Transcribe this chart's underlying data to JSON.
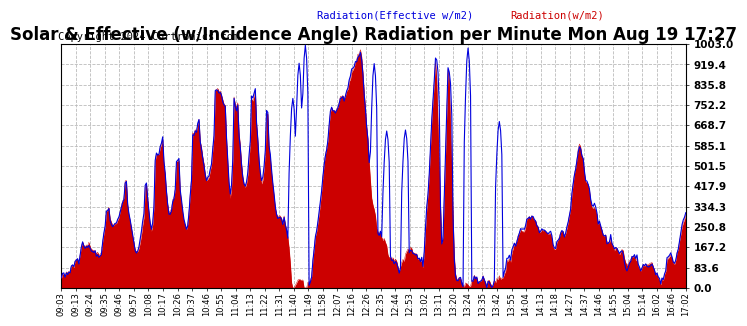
{
  "title": "Solar & Effective (w/Incidence Angle) Radiation per Minute Mon Aug 19 17:27",
  "copyright": "Copyright 2024 Curtronics.com",
  "legend_blue": "Radiation(Effective w/m2)",
  "legend_red": "Radiation(w/m2)",
  "ymin": 0.0,
  "ymax": 1003.0,
  "yticks": [
    0.0,
    83.6,
    167.2,
    250.8,
    334.3,
    417.9,
    501.5,
    585.1,
    668.7,
    752.2,
    835.8,
    919.4,
    1003.0
  ],
  "background_color": "#ffffff",
  "grid_color": "#bbbbbb",
  "fill_red": "#cc0000",
  "line_blue": "#0000dd",
  "title_fontsize": 12,
  "copyright_fontsize": 7.5,
  "xtick_labels": [
    "09:03",
    "09:13",
    "09:24",
    "09:35",
    "09:46",
    "09:57",
    "10:08",
    "10:17",
    "10:26",
    "10:37",
    "10:46",
    "10:55",
    "11:04",
    "11:13",
    "11:22",
    "11:31",
    "11:40",
    "11:49",
    "11:58",
    "12:07",
    "12:16",
    "12:26",
    "12:35",
    "12:44",
    "12:53",
    "13:02",
    "13:11",
    "13:20",
    "13:24",
    "13:35",
    "13:42",
    "13:55",
    "14:04",
    "14:13",
    "14:18",
    "14:27",
    "14:37",
    "14:46",
    "14:55",
    "15:04",
    "15:14",
    "16:02",
    "16:46",
    "17:02"
  ],
  "num_points": 500
}
